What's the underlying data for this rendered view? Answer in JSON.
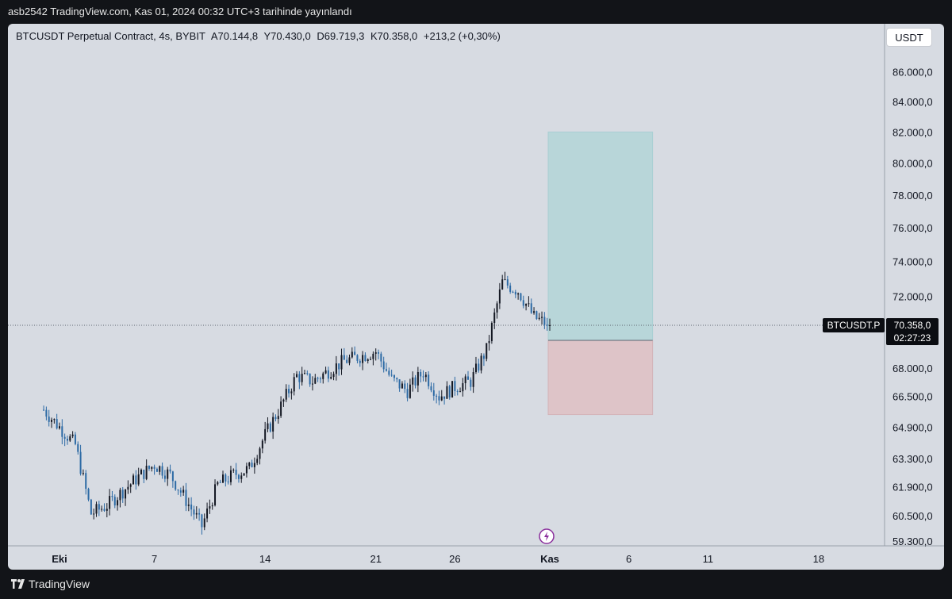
{
  "header": {
    "publish_line": "asb2542 TradingView.com, Kas 01, 2024 00:32 UTC+3 tarihinde yayınlandı"
  },
  "legend": {
    "symbol": "BTCUSDT Perpetual Contract, 4s, BYBIT",
    "open": "A70.144,8",
    "high": "Y70.430,0",
    "low": "D69.719,3",
    "close": "K70.358,0",
    "change": "+213,2 (+0,30%)"
  },
  "currency_button": "USDT",
  "price_tag": {
    "symbol": "BTCUSDT.P",
    "price": "70.358,0",
    "countdown": "02:27:23"
  },
  "footer": {
    "brand": "TradingView"
  },
  "colors": {
    "background": "#d7dbe2",
    "candle_up": "#131722",
    "candle_down": "#2c6aa5",
    "profit_zone": "#b8d6d9",
    "loss_zone": "#dec4c8"
  },
  "chart_data": {
    "type": "candlestick",
    "y_scale": "log",
    "y_tick_labels": [
      "86.000,0",
      "84.000,0",
      "82.000,0",
      "80.000,0",
      "78.000,0",
      "76.000,0",
      "74.000,0",
      "72.000,0",
      "68.000,0",
      "66.500,0",
      "64.900,0",
      "63.300,0",
      "61.900,0",
      "60.500,0",
      "59.300,0"
    ],
    "y_ticks": [
      86000,
      84000,
      82000,
      80000,
      78000,
      76000,
      74000,
      72000,
      68000,
      66500,
      64900,
      63300,
      61900,
      60500,
      59300
    ],
    "x_tick_labels": [
      "Eki",
      "7",
      "14",
      "21",
      "26",
      "Kas",
      "6",
      "11",
      "18"
    ],
    "x_tick_dates": [
      "2024-10-01",
      "2024-10-07",
      "2024-10-14",
      "2024-10-21",
      "2024-10-26",
      "2024-11-01",
      "2024-11-06",
      "2024-11-11",
      "2024-11-18"
    ],
    "last_price": 70358,
    "close_path": [
      [
        "2024-09-30",
        65800
      ],
      [
        "2024-10-02",
        64000
      ],
      [
        "2024-10-03",
        60600
      ],
      [
        "2024-10-04",
        61000
      ],
      [
        "2024-10-06",
        62400
      ],
      [
        "2024-10-07",
        63000
      ],
      [
        "2024-10-08",
        62500
      ],
      [
        "2024-10-10",
        60000
      ],
      [
        "2024-10-11",
        62000
      ],
      [
        "2024-10-12",
        62500
      ],
      [
        "2024-10-13",
        62800
      ],
      [
        "2024-10-14",
        64500
      ],
      [
        "2024-10-15",
        66000
      ],
      [
        "2024-10-16",
        67600
      ],
      [
        "2024-10-17",
        67300
      ],
      [
        "2024-10-19",
        68400
      ],
      [
        "2024-10-21",
        68900
      ],
      [
        "2024-10-22",
        67400
      ],
      [
        "2024-10-23",
        66800
      ],
      [
        "2024-10-24",
        67800
      ],
      [
        "2024-10-25",
        66500
      ],
      [
        "2024-10-26",
        67000
      ],
      [
        "2024-10-27",
        67300
      ],
      [
        "2024-10-28",
        69000
      ],
      [
        "2024-10-29",
        72800
      ],
      [
        "2024-10-30",
        72300
      ],
      [
        "2024-10-31",
        70800
      ],
      [
        "2024-11-01",
        70358
      ]
    ],
    "position_tool": {
      "entry": 69520,
      "target": 82000,
      "stop": 65550,
      "start": "2024-11-01",
      "end": "2024-11-07"
    }
  }
}
